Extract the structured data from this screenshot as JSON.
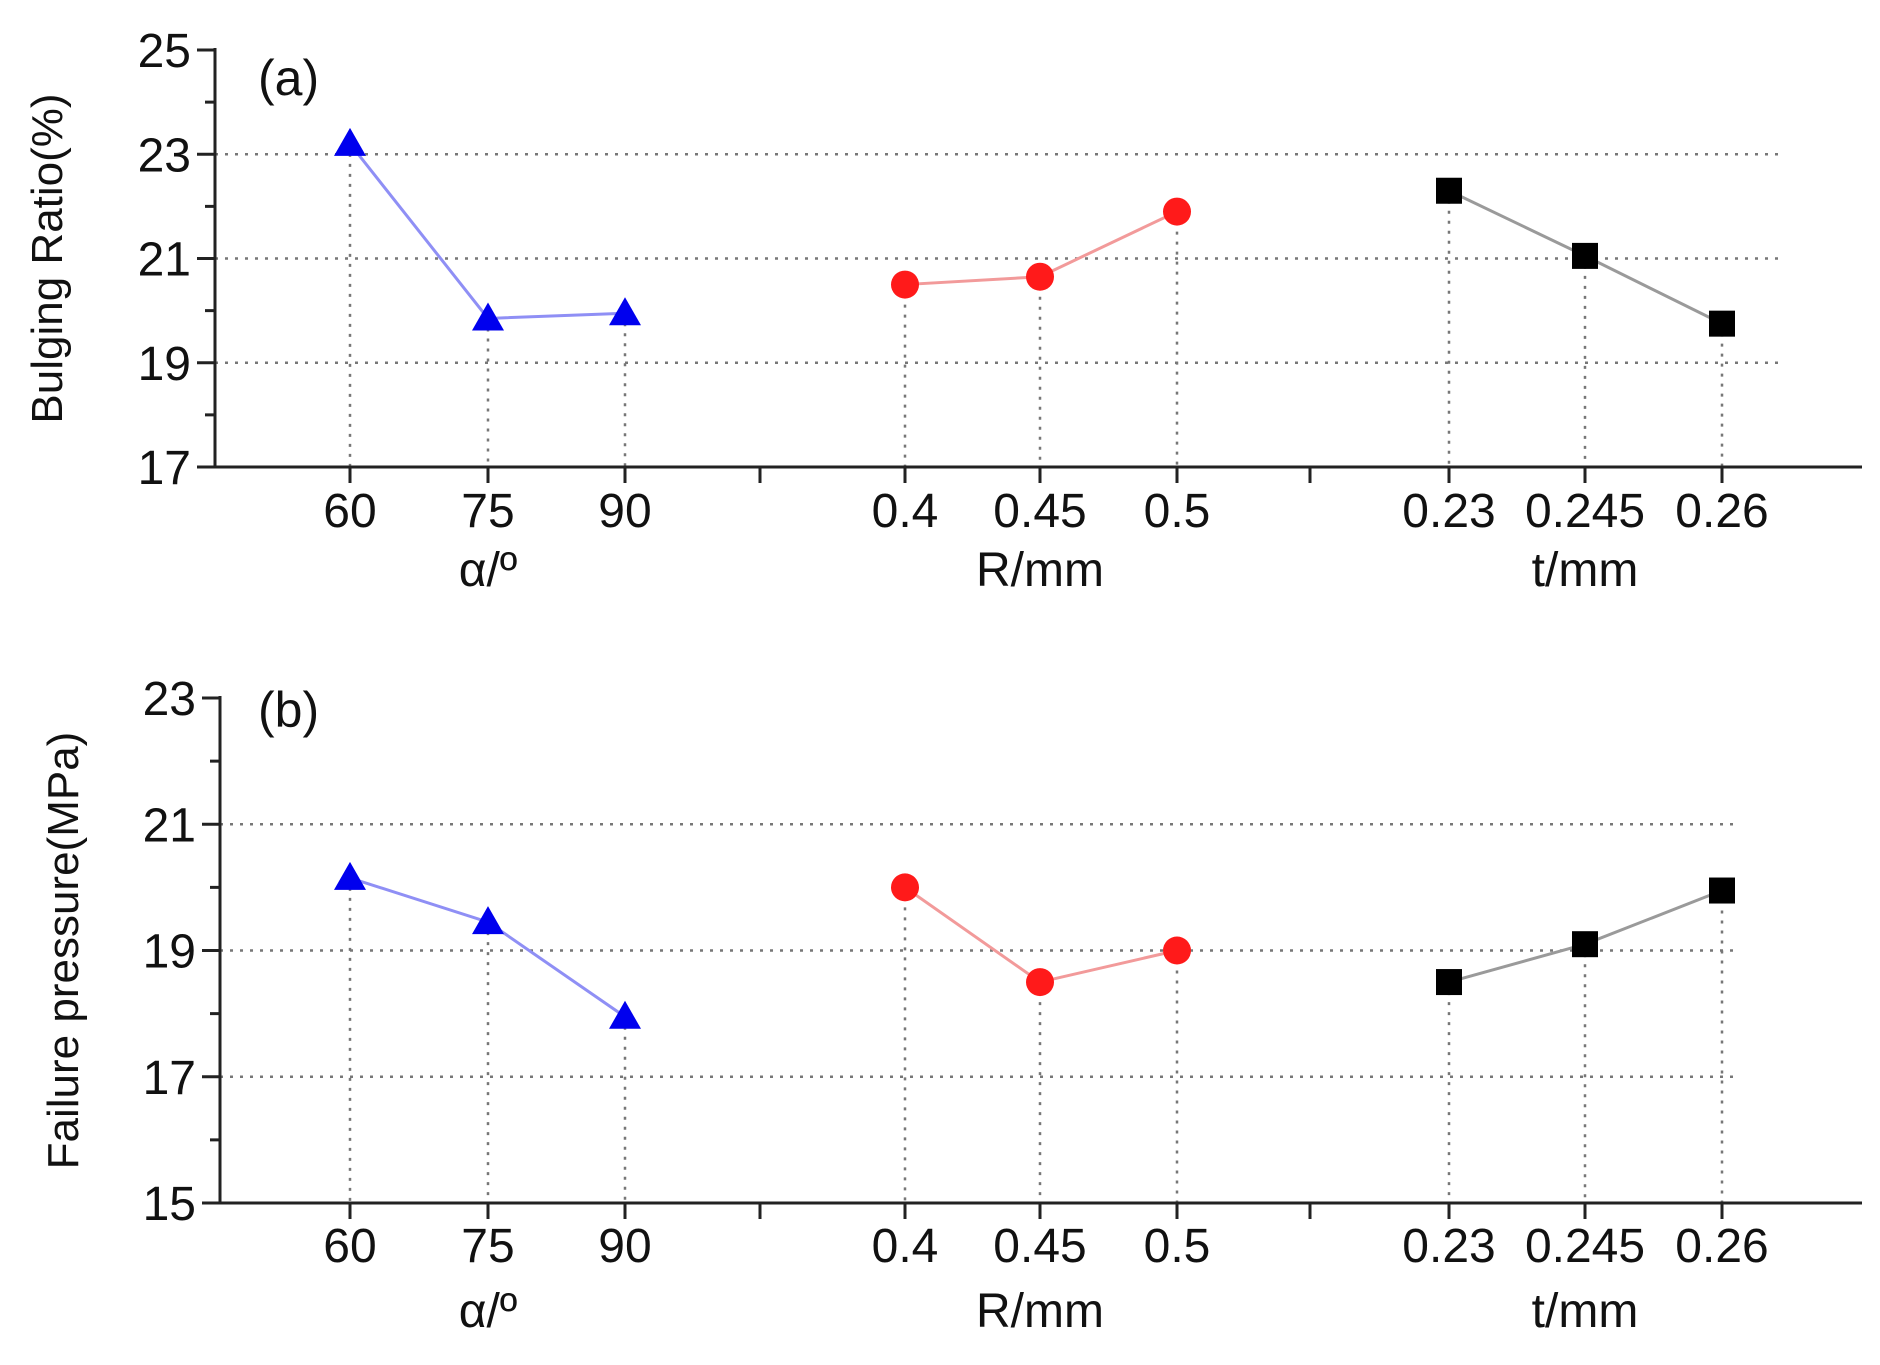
{
  "chart_data": [
    {
      "type": "line",
      "panel_label": "(a)",
      "ylabel": "Bulging Ratio(%)",
      "ylim": [
        17,
        25
      ],
      "yticks": [
        "17",
        "19",
        "21",
        "23",
        "25"
      ],
      "grid": true,
      "groups": [
        {
          "name": "α/º",
          "xlabel": "α/º",
          "categories": [
            "60",
            "75",
            "90"
          ],
          "values": [
            23.2,
            19.85,
            19.95
          ],
          "color": "#0000ee",
          "line_color": "#8f8ff5",
          "marker": "triangle"
        },
        {
          "name": "R/mm",
          "xlabel": "R/mm",
          "categories": [
            "0.4",
            "0.45",
            "0.5"
          ],
          "values": [
            20.5,
            20.65,
            21.9
          ],
          "color": "#ff1a1a",
          "line_color": "#f29a9a",
          "marker": "circle"
        },
        {
          "name": "t/mm",
          "xlabel": "t/mm",
          "categories": [
            "0.23",
            "0.245",
            "0.26"
          ],
          "values": [
            22.3,
            21.05,
            19.75
          ],
          "color": "#000000",
          "line_color": "#9a9a9a",
          "marker": "square"
        }
      ]
    },
    {
      "type": "line",
      "panel_label": "(b)",
      "ylabel": "Failure pressure(MPa)",
      "ylim": [
        15,
        23
      ],
      "yticks": [
        "15",
        "17",
        "19",
        "21",
        "23"
      ],
      "grid": true,
      "groups": [
        {
          "name": "α/º",
          "xlabel": "α/º",
          "categories": [
            "60",
            "75",
            "90"
          ],
          "values": [
            20.15,
            19.45,
            17.95
          ],
          "color": "#0000ee",
          "line_color": "#8f8ff5",
          "marker": "triangle"
        },
        {
          "name": "R/mm",
          "xlabel": "R/mm",
          "categories": [
            "0.4",
            "0.45",
            "0.5"
          ],
          "values": [
            20.0,
            18.5,
            19.0
          ],
          "color": "#ff1a1a",
          "line_color": "#f29a9a",
          "marker": "circle"
        },
        {
          "name": "t/mm",
          "xlabel": "t/mm",
          "categories": [
            "0.23",
            "0.245",
            "0.26"
          ],
          "values": [
            18.5,
            19.1,
            19.95
          ],
          "color": "#000000",
          "line_color": "#9a9a9a",
          "marker": "square"
        }
      ]
    }
  ]
}
